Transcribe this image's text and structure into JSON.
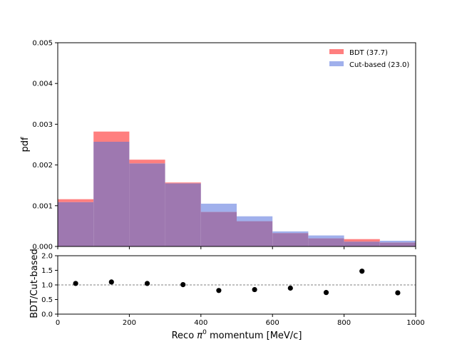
{
  "chart_data": [
    {
      "type": "histogram",
      "ylabel": "pdf",
      "ylim": [
        0,
        0.005
      ],
      "xlim": [
        0,
        1000
      ],
      "bin_edges": [
        0,
        100,
        200,
        300,
        400,
        500,
        600,
        700,
        800,
        900,
        1000
      ],
      "yticks": [
        "0.000",
        "0.001",
        "0.002",
        "0.003",
        "0.004",
        "0.005"
      ],
      "legend_position": "top-right",
      "series": [
        {
          "name": "BDT (37.7)",
          "color": "#ff7f7f",
          "values": [
            0.00116,
            0.00282,
            0.00213,
            0.00157,
            0.00085,
            0.00062,
            0.00033,
            0.0002,
            0.00018,
            0.0001
          ]
        },
        {
          "name": "Cut-based (23.0)",
          "color": "#a0b0ec",
          "values": [
            0.00109,
            0.00257,
            0.00204,
            0.00155,
            0.00105,
            0.00074,
            0.00037,
            0.00027,
            0.00012,
            0.00014
          ]
        }
      ],
      "overlap_color": "#9e78b0"
    },
    {
      "type": "scatter",
      "ylabel": "BDT/Cut-based",
      "xlabel_prefix": "Reco ",
      "xlabel_symbol": "π",
      "xlabel_sup": "0",
      "xlabel_suffix": " momentum [MeV/c]",
      "ylim": [
        0,
        2.0
      ],
      "xlim": [
        0,
        1000
      ],
      "yticks": [
        "0.0",
        "0.5",
        "1.0",
        "1.5",
        "2.0"
      ],
      "xticks": [
        "0",
        "200",
        "400",
        "600",
        "800",
        "1000"
      ],
      "reference_line": 1.0,
      "x": [
        50,
        150,
        250,
        350,
        450,
        550,
        650,
        750,
        850,
        950
      ],
      "y": [
        1.05,
        1.1,
        1.05,
        1.01,
        0.81,
        0.84,
        0.89,
        0.74,
        1.47,
        0.73
      ]
    }
  ]
}
